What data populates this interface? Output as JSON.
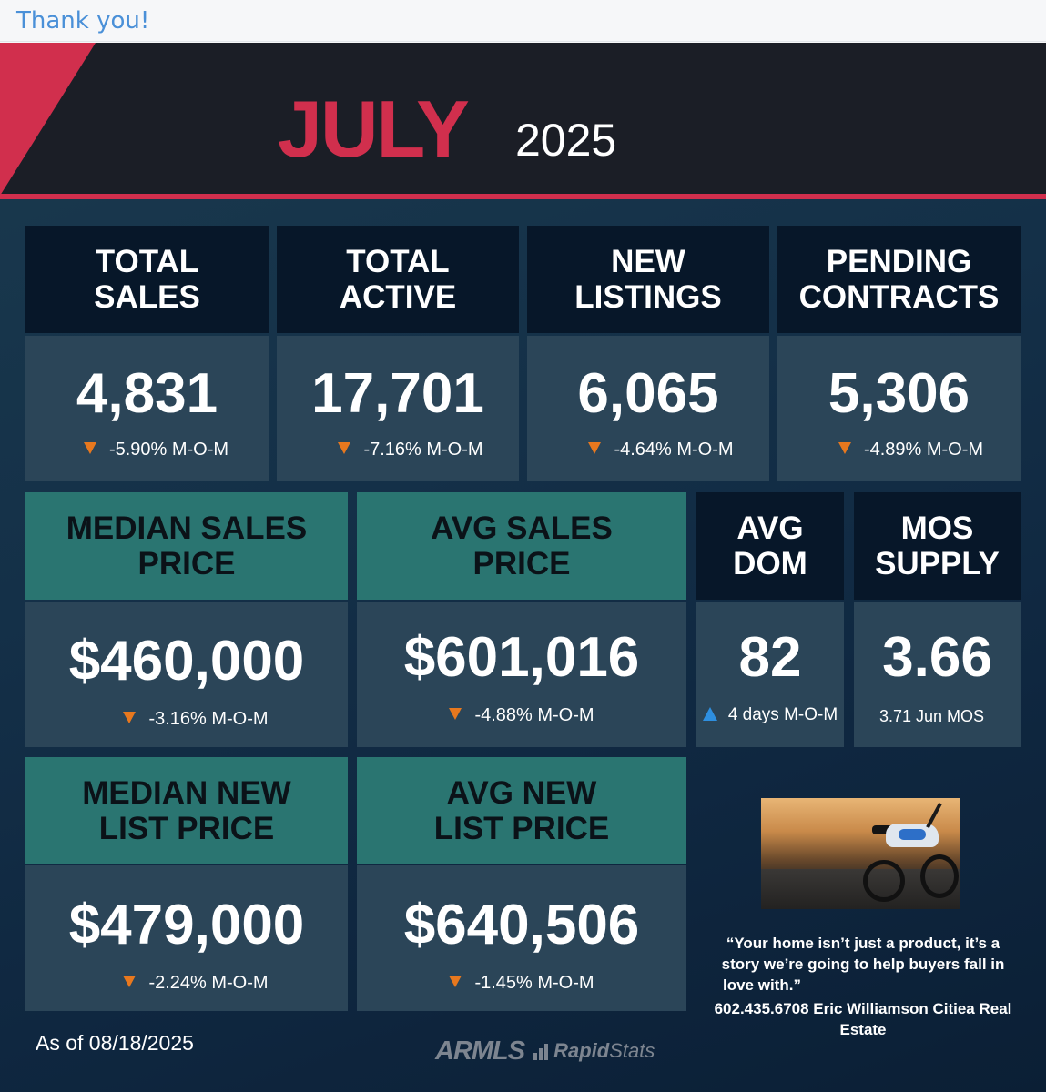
{
  "topbar": {
    "text": "Thank you!"
  },
  "header": {
    "month": "JULY",
    "year": "2025"
  },
  "stats_row1": [
    {
      "title_line1": "TOTAL",
      "title_line2": "SALES",
      "value": "4,831",
      "change": "-5.90% M-O-M",
      "direction": "down"
    },
    {
      "title_line1": "TOTAL",
      "title_line2": "ACTIVE",
      "value": "17,701",
      "change": "-7.16% M-O-M",
      "direction": "down"
    },
    {
      "title_line1": "NEW",
      "title_line2": "LISTINGS",
      "value": "6,065",
      "change": "-4.64% M-O-M",
      "direction": "down"
    },
    {
      "title_line1": "PENDING",
      "title_line2": "CONTRACTS",
      "value": "5,306",
      "change": "-4.89% M-O-M",
      "direction": "down"
    }
  ],
  "stats_row2": [
    {
      "title_line1": "MEDIAN SALES",
      "title_line2": "PRICE",
      "value": "$460,000",
      "change": "-3.16% M-O-M",
      "direction": "down"
    },
    {
      "title_line1": "AVG SALES",
      "title_line2": "PRICE",
      "value": "$601,016",
      "change": "-4.88% M-O-M",
      "direction": "down"
    },
    {
      "title_line1": "AVG",
      "title_line2": "DOM",
      "value": "82",
      "change": "4 days M-O-M",
      "direction": "up"
    },
    {
      "title_line1": "MOS",
      "title_line2": "SUPPLY",
      "value": "3.66",
      "change": "3.71 Jun MOS",
      "direction": "none"
    }
  ],
  "stats_row3": [
    {
      "title_line1": "MEDIAN NEW",
      "title_line2": "LIST PRICE",
      "value": "$479,000",
      "change": "-2.24% M-O-M",
      "direction": "down"
    },
    {
      "title_line1": "AVG NEW",
      "title_line2": "LIST PRICE",
      "value": "$640,506",
      "change": "-1.45% M-O-M",
      "direction": "down"
    }
  ],
  "quote": {
    "line1": "“Your home isn’t just a product,  it’s a",
    "line2": "story we’re going to help buyers fall in",
    "line3": "love with.”"
  },
  "contact": {
    "line1": "602.435.6708 Eric Williamson Citiea Real",
    "line2": "Estate"
  },
  "footer": {
    "as_of": "As of 08/18/2025",
    "logo_main": "ARMLS",
    "logo_rapid": "Rapid",
    "logo_stats": "Stats"
  },
  "colors": {
    "accent_red": "#d12f4d",
    "teal": "#2a7571",
    "navy": "#071729",
    "down_arrow": "#e8781e",
    "up_arrow": "#2e8fe0"
  },
  "icons": {
    "down": "down-triangle-icon",
    "up": "up-triangle-icon"
  }
}
